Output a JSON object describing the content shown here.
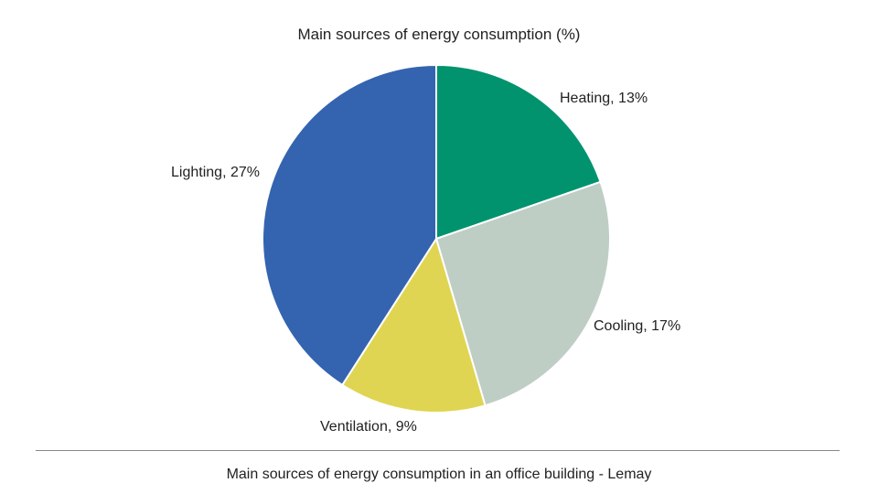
{
  "chart_data": {
    "type": "pie",
    "title": "Main sources of energy consumption (%)",
    "slices": [
      {
        "label": "Heating, 13%",
        "value": 13,
        "color": "#00936e"
      },
      {
        "label": "Cooling, 17%",
        "value": 17,
        "color": "#bfcec5"
      },
      {
        "label": "Ventilation, 9%",
        "value": 9,
        "color": "#e0d552"
      },
      {
        "label": "Lighting, 27%",
        "value": 27,
        "color": "#3464b0"
      }
    ],
    "start": "top",
    "direction": "clockwise"
  },
  "caption": "Main sources of energy consumption in an office building - Lemay"
}
